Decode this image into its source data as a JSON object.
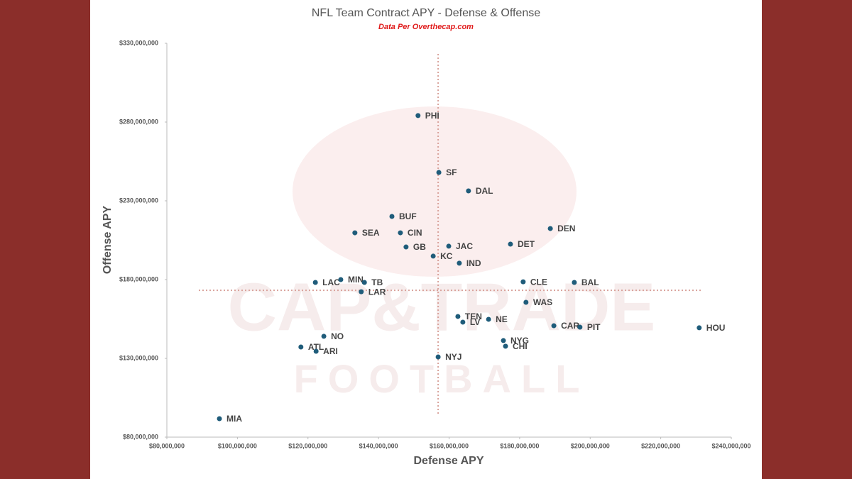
{
  "chart_data": {
    "type": "scatter",
    "title": "NFL Team Contract APY - Defense & Offense",
    "subtitle": "Data Per Overthecap.com",
    "x_label": "Defense APY",
    "y_label": "Offense APY",
    "watermark": [
      "CAP&TRADE",
      "FOOTBALL"
    ],
    "labels": [
      "PHI",
      "SF",
      "DAL",
      "BUF",
      "SEA",
      "CIN",
      "GB",
      "JAC",
      "KC",
      "IND",
      "DEN",
      "DET",
      "LAC",
      "MIN",
      "TB",
      "LAR",
      "CLE",
      "BAL",
      "WAS",
      "TEN",
      "LV",
      "NE",
      "CAR",
      "PIT",
      "HOU",
      "NO",
      "ATL",
      "ARI",
      "NYG",
      "CHI",
      "NYJ",
      "MIA"
    ],
    "x": [
      151200000,
      157100000,
      165500000,
      143800000,
      133300000,
      146200000,
      147800000,
      159900000,
      155500000,
      162900000,
      188700000,
      177400000,
      122100000,
      129300000,
      136000000,
      135100000,
      181000000,
      195500000,
      181800000,
      162500000,
      163900000,
      171200000,
      189700000,
      197100000,
      230900000,
      124500000,
      118000000,
      122300000,
      175400000,
      176000000,
      156900000,
      94900000
    ],
    "values": [
      284100000,
      248000000,
      236300000,
      220100000,
      209700000,
      209700000,
      200700000,
      201200000,
      194900000,
      190400000,
      212400000,
      202500000,
      178200000,
      180000000,
      178200000,
      172300000,
      178600000,
      178200000,
      165600000,
      156600000,
      153000000,
      154800000,
      150700000,
      149800000,
      149400000,
      144000000,
      137200000,
      134500000,
      141300000,
      137700000,
      130900000,
      91700000
    ],
    "color": "#1f5c7a",
    "reference_lines": {
      "x": 156900000,
      "y": 173200000,
      "color": "#d9a39c"
    },
    "xlim": [
      80000000,
      240000000
    ],
    "ylim": [
      80000000,
      330000000
    ],
    "xticks": [
      {
        "value": 80000000,
        "label": "$80,000,000"
      },
      {
        "value": 100000000,
        "label": "$100,000,000"
      },
      {
        "value": 120000000,
        "label": "$120,000,000"
      },
      {
        "value": 140000000,
        "label": "$140,000,000"
      },
      {
        "value": 160000000,
        "label": "$160,000,000"
      },
      {
        "value": 180000000,
        "label": "$180,000,000"
      },
      {
        "value": 200000000,
        "label": "$200,000,000"
      },
      {
        "value": 220000000,
        "label": "$220,000,000"
      },
      {
        "value": 240000000,
        "label": "$240,000,000"
      }
    ],
    "yticks": [
      {
        "value": 80000000,
        "label": "$80,000,000"
      },
      {
        "value": 130000000,
        "label": "$130,000,000"
      },
      {
        "value": 180000000,
        "label": "$180,000,000"
      },
      {
        "value": 230000000,
        "label": "$230,000,000"
      },
      {
        "value": 280000000,
        "label": "$280,000,000"
      },
      {
        "value": 330000000,
        "label": "$330,000,000"
      }
    ]
  }
}
